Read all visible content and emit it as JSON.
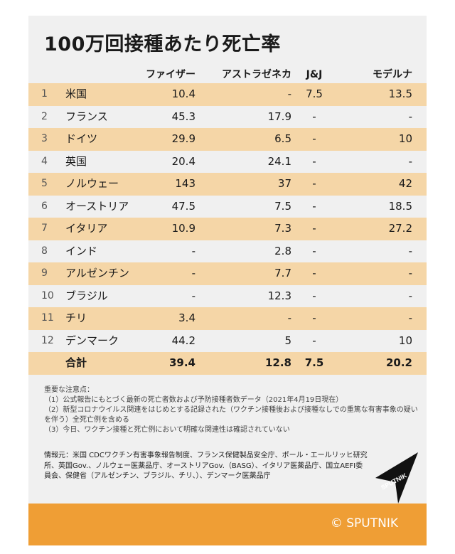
{
  "title": "100万回接種あたり死亡率",
  "columns": {
    "pfizer": "ファイザー",
    "astrazeneca": "アストラゼネカ",
    "jj": "J&J",
    "moderna": "モデルナ"
  },
  "rows": [
    {
      "rank": "1",
      "name": "米国",
      "pfizer": "10.4",
      "astrazeneca": "-",
      "jj": "7.5",
      "moderna": "13.5"
    },
    {
      "rank": "2",
      "name": "フランス",
      "pfizer": "45.3",
      "astrazeneca": "17.9",
      "jj": "-",
      "moderna": "-"
    },
    {
      "rank": "3",
      "name": "ドイツ",
      "pfizer": "29.9",
      "astrazeneca": "6.5",
      "jj": "-",
      "moderna": "10"
    },
    {
      "rank": "4",
      "name": "英国",
      "pfizer": "20.4",
      "astrazeneca": "24.1",
      "jj": "-",
      "moderna": "-"
    },
    {
      "rank": "5",
      "name": "ノルウェー",
      "pfizer": "143",
      "astrazeneca": "37",
      "jj": "-",
      "moderna": "42"
    },
    {
      "rank": "6",
      "name": "オーストリア",
      "pfizer": "47.5",
      "astrazeneca": "7.5",
      "jj": "-",
      "moderna": "18.5"
    },
    {
      "rank": "7",
      "name": "イタリア",
      "pfizer": "10.9",
      "astrazeneca": "7.3",
      "jj": "-",
      "moderna": "27.2"
    },
    {
      "rank": "8",
      "name": "インド",
      "pfizer": "-",
      "astrazeneca": "2.8",
      "jj": "-",
      "moderna": "-"
    },
    {
      "rank": "9",
      "name": "アルゼンチン",
      "pfizer": "-",
      "astrazeneca": "7.7",
      "jj": "-",
      "moderna": "-"
    },
    {
      "rank": "10",
      "name": "ブラジル",
      "pfizer": "-",
      "astrazeneca": "12.3",
      "jj": "-",
      "moderna": "-"
    },
    {
      "rank": "11",
      "name": "チリ",
      "pfizer": "3.4",
      "astrazeneca": "-",
      "jj": "-",
      "moderna": "-"
    },
    {
      "rank": "12",
      "name": "デンマーク",
      "pfizer": "44.2",
      "astrazeneca": "5",
      "jj": "-",
      "moderna": "10"
    }
  ],
  "total": {
    "name": "合計",
    "pfizer": "39.4",
    "astrazeneca": "12.8",
    "jj": "7.5",
    "moderna": "20.2"
  },
  "notes": {
    "heading": "重要な注意点：",
    "items": [
      "（1）公式報告にもとづく最新の死亡者数および予防接種者数データ（2021年4月19日現在）",
      "（2）新型コロナウイルス関連をはじめとする記録された（ワクチン接種後および接種なしでの重篤な有害事象の疑いを伴う）全死亡例を含める",
      "（3）今日、ワクチン接種と死亡例において明確な関連性は確認されていない"
    ]
  },
  "sources": "情報元：米国 CDCワクチン有害事象報告制度、フランス保健製品安全庁、ポール・エールリッヒ研究所、英国Gov.、ノルウェー医薬品庁、オーストリアGov.（BASG）、イタリア医薬品庁、国立AEFI委員会、保健省（アルゼンチン、ブラジル、チリ、）、デンマーク医薬品庁",
  "logo_text": "SPUTNIK",
  "footer": "© SPUTNIK",
  "colors": {
    "shade": "#f5d6a7",
    "footer": "#ef9e35",
    "card": "#f0f0f0"
  }
}
